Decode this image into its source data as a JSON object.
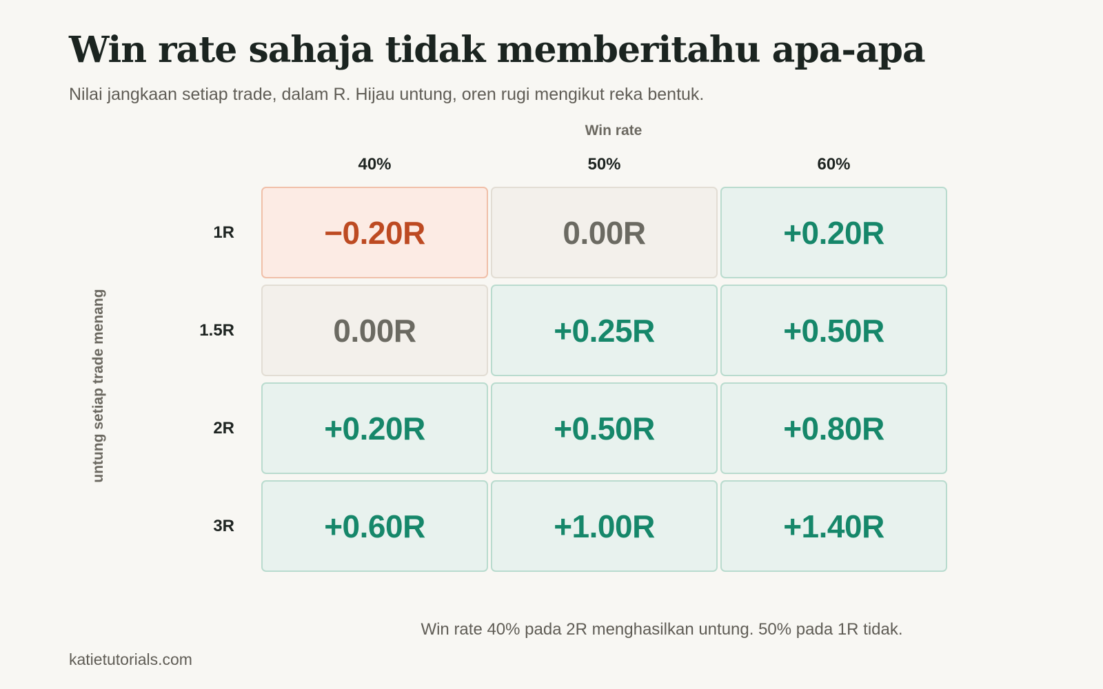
{
  "chart_data": {
    "type": "heatmap",
    "title": "Win rate sahaja tidak memberitahu apa-apa",
    "subtitle": "Nilai jangkaan setiap trade, dalam R. Hijau untung, oren rugi mengikut reka bentuk.",
    "xlabel": "Win rate",
    "ylabel": "untung setiap trade menang",
    "x": [
      "40%",
      "50%",
      "60%"
    ],
    "y": [
      "1R",
      "1.5R",
      "2R",
      "3R"
    ],
    "values": [
      [
        -0.2,
        0.0,
        0.2
      ],
      [
        0.0,
        0.25,
        0.5
      ],
      [
        0.2,
        0.5,
        0.8
      ],
      [
        0.6,
        1.0,
        1.4
      ]
    ],
    "cell_labels": [
      [
        "−0.20R",
        "0.00R",
        "+0.20R"
      ],
      [
        "0.00R",
        "+0.25R",
        "+0.50R"
      ],
      [
        "+0.20R",
        "+0.50R",
        "+0.80R"
      ],
      [
        "+0.60R",
        "+1.00R",
        "+1.40R"
      ]
    ],
    "colors": {
      "positive": "#16876a",
      "negative": "#bd4a22",
      "zero": "#6b6a62"
    }
  },
  "annotation": "Win rate 40% pada 2R menghasilkan untung. 50% pada 1R tidak.",
  "footer": {
    "source": "katietutorials.com"
  }
}
